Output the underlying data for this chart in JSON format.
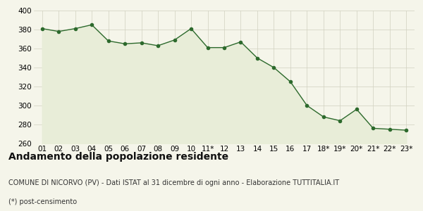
{
  "x_labels": [
    "01",
    "02",
    "03",
    "04",
    "05",
    "06",
    "07",
    "08",
    "09",
    "10",
    "11*",
    "12",
    "13",
    "14",
    "15",
    "16",
    "17",
    "18*",
    "19*",
    "20*",
    "21*",
    "22*",
    "23*"
  ],
  "y_values": [
    381,
    378,
    381,
    385,
    368,
    365,
    366,
    363,
    369,
    381,
    361,
    361,
    367,
    350,
    340,
    325,
    300,
    288,
    284,
    296,
    276,
    275,
    274
  ],
  "line_color": "#2d6a2d",
  "marker_color": "#2d6a2d",
  "fill_color": "#e8edd8",
  "bg_color": "#f5f5ea",
  "grid_color": "#d0d0c0",
  "ylim": [
    260,
    400
  ],
  "yticks": [
    260,
    280,
    300,
    320,
    340,
    360,
    380,
    400
  ],
  "title": "Andamento della popolazione residente",
  "subtitle": "COMUNE DI NICORVO (PV) - Dati ISTAT al 31 dicembre di ogni anno - Elaborazione TUTTITALIA.IT",
  "footnote": "(*) post-censimento",
  "title_fontsize": 10,
  "subtitle_fontsize": 7,
  "footnote_fontsize": 7,
  "tick_fontsize": 7.5
}
